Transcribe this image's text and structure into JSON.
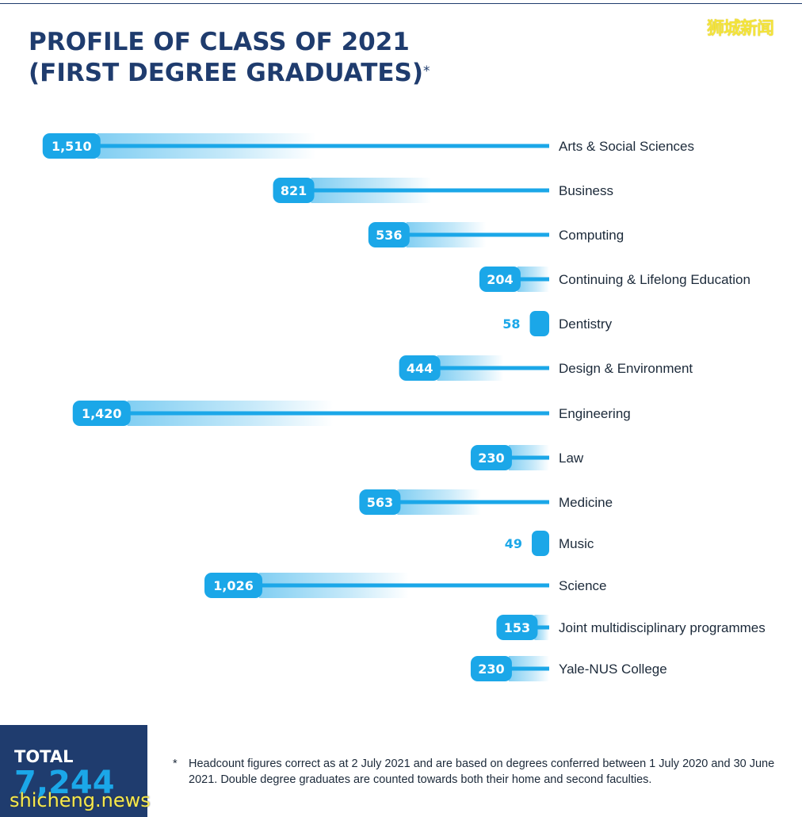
{
  "header": {
    "title_line1": "PROFILE OF CLASS OF 2021",
    "title_line2": "(FIRST DEGREE GRADUATES)",
    "title_mark": "*"
  },
  "watermarks": {
    "cn": "狮城新闻",
    "en": "shicheng.news"
  },
  "total": {
    "label": "TOTAL",
    "value": "7,244"
  },
  "footnote": {
    "mark": "*",
    "text": "Headcount figures correct as at 2 July 2021 and are based on degrees conferred between 1 July 2020 and 30 June 2021. Double degree graduates are counted towards both their home and second faculties."
  },
  "colors": {
    "bar": "#1ba7e8",
    "navy": "#1f3c6e",
    "label": "#ffffff"
  },
  "chart_data": {
    "type": "bar",
    "orientation": "horizontal",
    "categories": [
      "Arts & Social Sciences",
      "Business",
      "Computing",
      "Continuing & Lifelong Education",
      "Dentistry",
      "Design & Environment",
      "Engineering",
      "Law",
      "Medicine",
      "Music",
      "Science",
      "Joint multidisciplinary programmes",
      "Yale-NUS College"
    ],
    "values": [
      1510,
      821,
      536,
      204,
      58,
      444,
      1420,
      230,
      563,
      49,
      1026,
      153,
      230
    ],
    "value_labels": [
      "1,510",
      "821",
      "536",
      "204",
      "58",
      "444",
      "1,420",
      "230",
      "563",
      "49",
      "1,026",
      "153",
      "230"
    ]
  }
}
